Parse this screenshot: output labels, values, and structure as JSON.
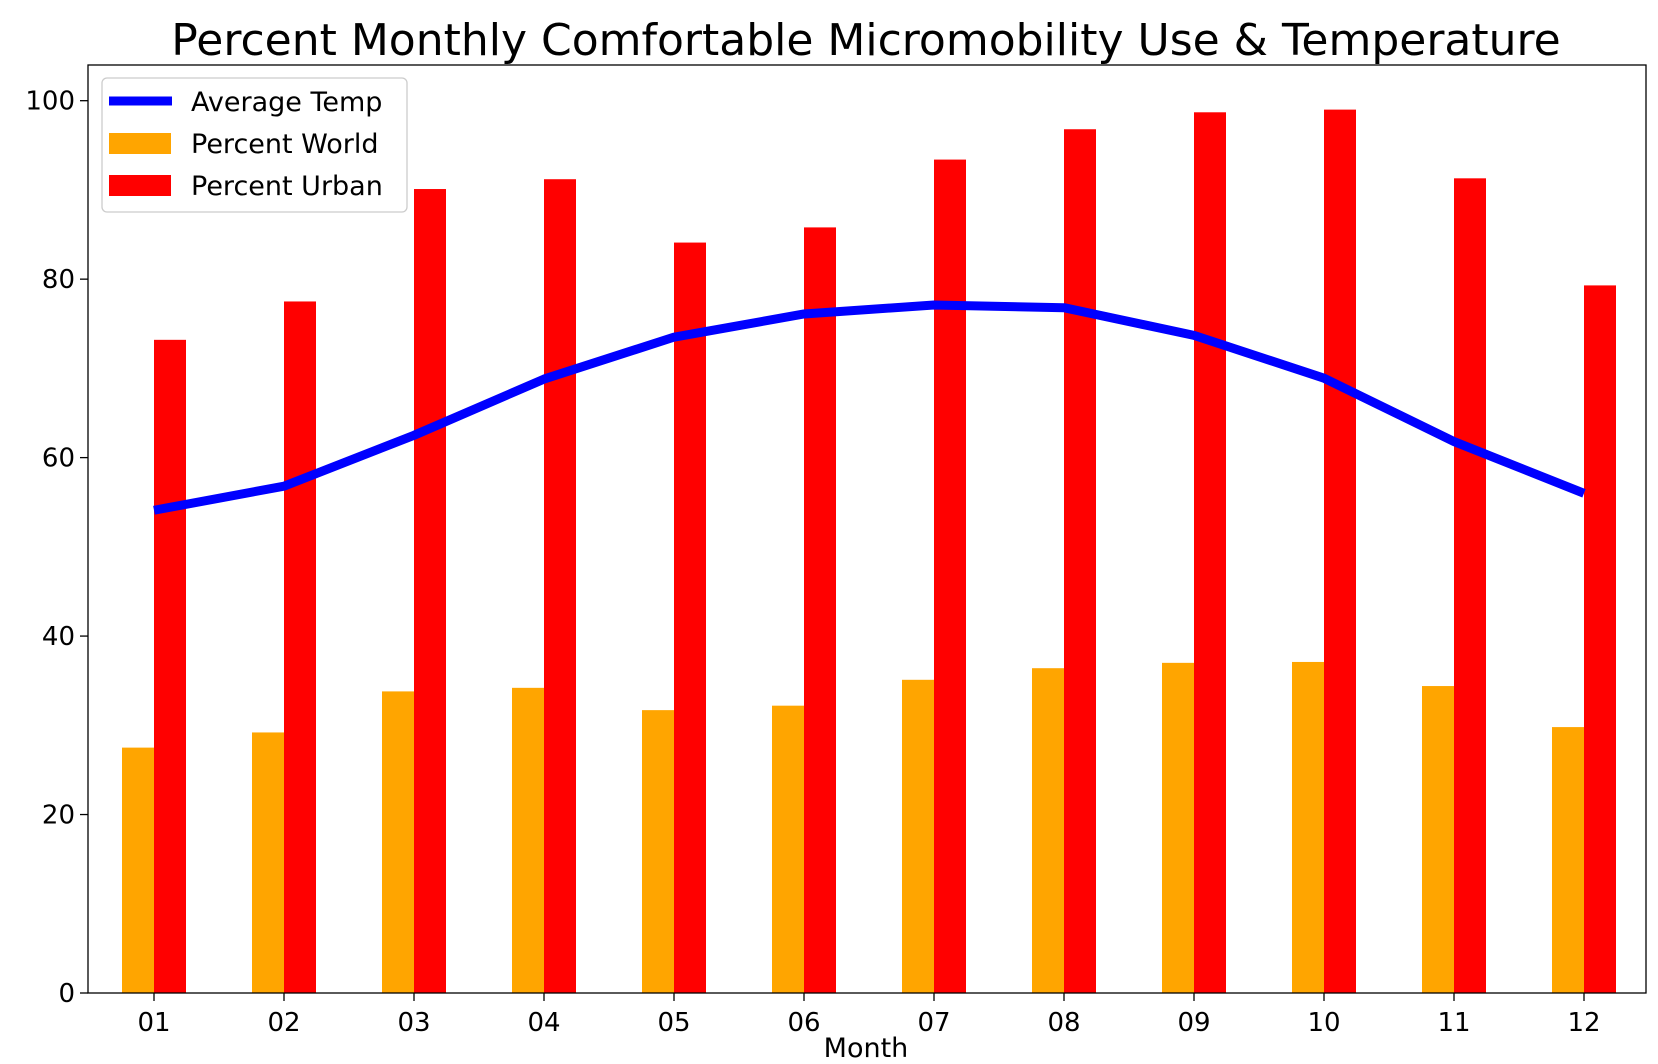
{
  "chart_data": {
    "type": "bar",
    "title": "Percent Monthly Comfortable Micromobility Use & Temperature",
    "xlabel": "Month",
    "ylabel": "",
    "ylim": [
      0,
      104
    ],
    "yticks": [
      0,
      20,
      40,
      60,
      80,
      100
    ],
    "grid": false,
    "legend_position": "top-left",
    "categories": [
      "01",
      "02",
      "03",
      "04",
      "05",
      "06",
      "07",
      "08",
      "09",
      "10",
      "11",
      "12"
    ],
    "series": [
      {
        "name": "Average Temp",
        "kind": "line",
        "color": "#0000ff",
        "values": [
          54.1,
          56.8,
          62.5,
          68.8,
          73.5,
          76.1,
          77.1,
          76.8,
          73.7,
          68.9,
          61.8,
          56.0
        ]
      },
      {
        "name": "Percent World",
        "kind": "bar",
        "color": "#ffa500",
        "values": [
          27.5,
          29.2,
          33.8,
          34.2,
          31.7,
          32.2,
          35.1,
          36.4,
          37.0,
          37.1,
          34.4,
          29.8
        ]
      },
      {
        "name": "Percent Urban",
        "kind": "bar",
        "color": "#ff0000",
        "values": [
          73.2,
          77.5,
          90.1,
          91.2,
          84.1,
          85.8,
          93.4,
          96.8,
          98.7,
          99.0,
          91.3,
          79.3
        ]
      }
    ]
  }
}
